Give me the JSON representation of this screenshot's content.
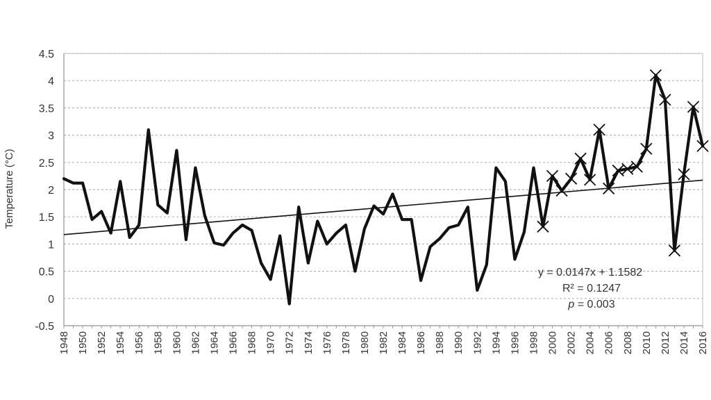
{
  "chart_data": {
    "type": "line",
    "title": "",
    "xlabel": "",
    "ylabel": "Temperature (°C)",
    "xlim": [
      1948,
      2016
    ],
    "ylim": [
      -0.5,
      4.5
    ],
    "yticks": [
      -0.5,
      0,
      0.5,
      1,
      1.5,
      2,
      2.5,
      3,
      3.5,
      4,
      4.5
    ],
    "ytick_labels": [
      "-0.5",
      "0",
      "0.5",
      "1",
      "1.5",
      "2",
      "2.5",
      "3",
      "3.5",
      "4",
      "4.5"
    ],
    "xtick_labels": [
      "1948",
      "1950",
      "1952",
      "1954",
      "1956",
      "1958",
      "1960",
      "1962",
      "1964",
      "1966",
      "1968",
      "1970",
      "1972",
      "1974",
      "1976",
      "1978",
      "1980",
      "1982",
      "1984",
      "1986",
      "1988",
      "1990",
      "1992",
      "1994",
      "1996",
      "1998",
      "2000",
      "2002",
      "2004",
      "2006",
      "2008",
      "2010",
      "2012",
      "2014",
      "2016"
    ],
    "grid": "horizontal dashed",
    "series": [
      {
        "marker": "none",
        "x": [
          1948,
          1949,
          1950,
          1951,
          1952,
          1953,
          1954,
          1955,
          1956,
          1957,
          1958,
          1959,
          1960,
          1961,
          1962,
          1963,
          1964,
          1965,
          1966,
          1967,
          1968,
          1969,
          1970,
          1971,
          1972,
          1973,
          1974,
          1975,
          1976,
          1977,
          1978,
          1979,
          1980,
          1981,
          1982,
          1983,
          1984,
          1985,
          1986,
          1987,
          1988,
          1989,
          1990,
          1991,
          1992,
          1993,
          1994,
          1995,
          1996,
          1997,
          1998,
          1999
        ],
        "values": [
          2.2,
          2.12,
          2.12,
          1.45,
          1.6,
          1.2,
          2.15,
          1.12,
          1.35,
          3.1,
          1.72,
          1.57,
          2.72,
          1.08,
          2.4,
          1.52,
          1.02,
          0.98,
          1.2,
          1.35,
          1.25,
          0.65,
          0.35,
          1.15,
          -0.1,
          1.68,
          0.65,
          1.42,
          1.0,
          1.2,
          1.35,
          0.5,
          1.28,
          1.7,
          1.55,
          1.92,
          1.45,
          1.45,
          0.33,
          0.95,
          1.1,
          1.3,
          1.35,
          1.68,
          0.15,
          0.62,
          2.4,
          2.15,
          0.72,
          1.22,
          2.4,
          1.32
        ]
      },
      {
        "marker": "x",
        "x": [
          1999,
          2000,
          2001,
          2002,
          2003,
          2004,
          2005,
          2006,
          2007,
          2008,
          2009,
          2010,
          2011,
          2012,
          2013,
          2014,
          2015,
          2016
        ],
        "values": [
          1.32,
          2.25,
          1.98,
          2.2,
          2.57,
          2.18,
          3.1,
          2.02,
          2.35,
          2.38,
          2.42,
          2.75,
          4.1,
          3.65,
          0.88,
          2.28,
          3.52,
          2.8
        ]
      }
    ],
    "trendline": {
      "slope": 0.0147,
      "intercept": 1.1582,
      "x_from": 1948,
      "x_to": 2016
    },
    "annotations": {
      "equation": "y = 0.0147x + 1.1582",
      "r2": "R² = 0.1247",
      "p_label": "p",
      "p_value": " = 0.003"
    }
  }
}
